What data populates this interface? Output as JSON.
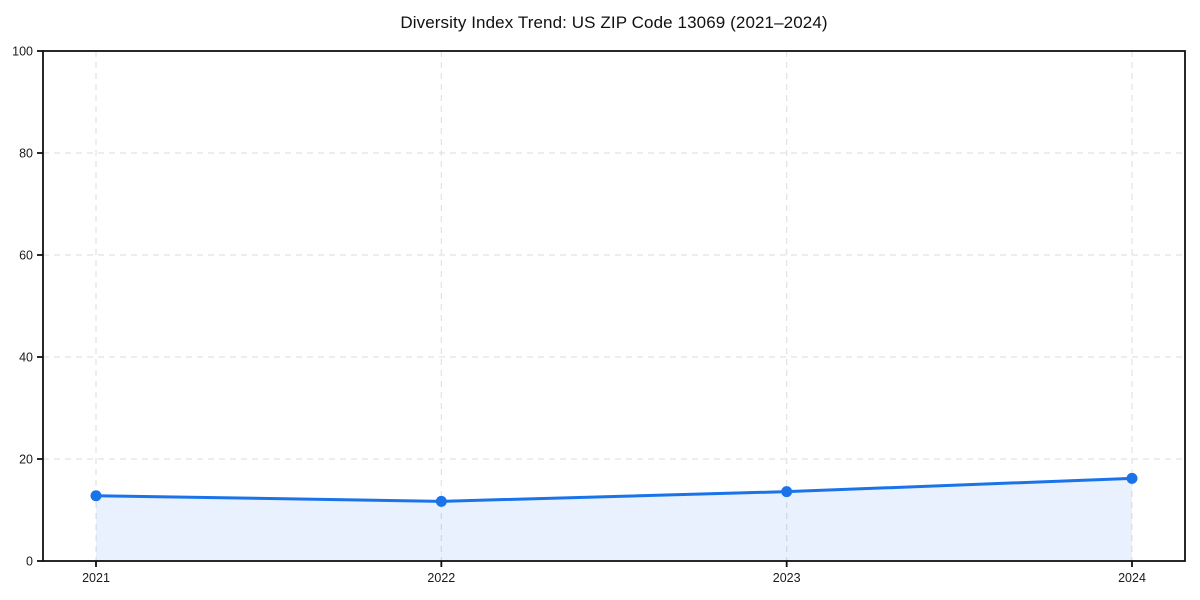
{
  "chart_data": {
    "type": "line",
    "title": "Diversity Index Trend: US ZIP Code 13069 (2021–2024)",
    "categories": [
      "2021",
      "2022",
      "2023",
      "2024"
    ],
    "series": [
      {
        "name": "Diversity Index",
        "values": [
          12.8,
          11.7,
          13.6,
          16.2
        ]
      }
    ],
    "xlabel": "",
    "ylabel": "",
    "ylim": [
      0,
      100
    ],
    "yticks": [
      0,
      20,
      40,
      60,
      80,
      100
    ],
    "grid": true,
    "grid_style": "dashed",
    "legend": false,
    "colors": {
      "line": "#1a73e8",
      "marker": "#1a73e8",
      "area_fill": "#1a73e8",
      "area_opacity": 0.1,
      "gridline": "#e2e2e2",
      "spine": "#111111",
      "tick_label": "#1a1a1a",
      "background": "#ffffff"
    }
  }
}
